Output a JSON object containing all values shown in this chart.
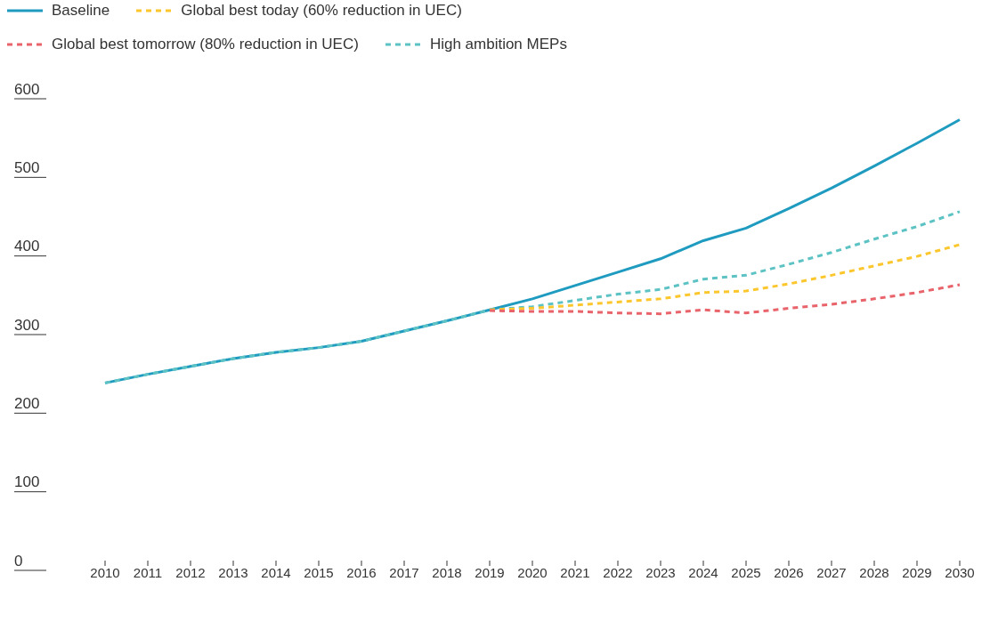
{
  "chart_data": {
    "type": "line",
    "categories": [
      "2010",
      "2011",
      "2012",
      "2013",
      "2014",
      "2015",
      "2016",
      "2017",
      "2018",
      "2019",
      "2020",
      "2021",
      "2022",
      "2023",
      "2024",
      "2025",
      "2026",
      "2027",
      "2028",
      "2029",
      "2030"
    ],
    "series": [
      {
        "name": "Baseline",
        "color": "#1f9bc0",
        "line_style": "solid",
        "values": [
          226,
          237,
          247,
          257,
          265,
          271,
          279,
          292,
          305,
          319,
          333,
          350,
          367,
          384,
          407,
          423,
          448,
          474,
          502,
          531,
          561
        ]
      },
      {
        "name": "Global best today (60% reduction in UEC)",
        "color": "#fcc62d",
        "line_style": "dashed",
        "values": [
          null,
          null,
          null,
          null,
          null,
          null,
          null,
          null,
          null,
          319,
          321,
          325,
          329,
          333,
          341,
          343,
          352,
          363,
          375,
          387,
          402
        ]
      },
      {
        "name": "Global best tomorrow (80% reduction in UEC)",
        "color": "#e8636a",
        "line_style": "dashed",
        "values": [
          null,
          null,
          null,
          null,
          null,
          null,
          null,
          null,
          null,
          318,
          317,
          317,
          315,
          314,
          319,
          315,
          321,
          326,
          333,
          341,
          351
        ]
      },
      {
        "name": "High ambition MEPs",
        "color": "#5cc2c4",
        "line_style": "dashed",
        "values": [
          226,
          237,
          247,
          257,
          265,
          271,
          279,
          292,
          305,
          319,
          323,
          331,
          339,
          345,
          358,
          363,
          377,
          392,
          409,
          425,
          444
        ]
      }
    ],
    "ylim": [
      0,
      600
    ],
    "yticks": [
      0,
      100,
      200,
      300,
      400,
      500,
      600
    ],
    "legend": "top left",
    "marker": "none"
  }
}
